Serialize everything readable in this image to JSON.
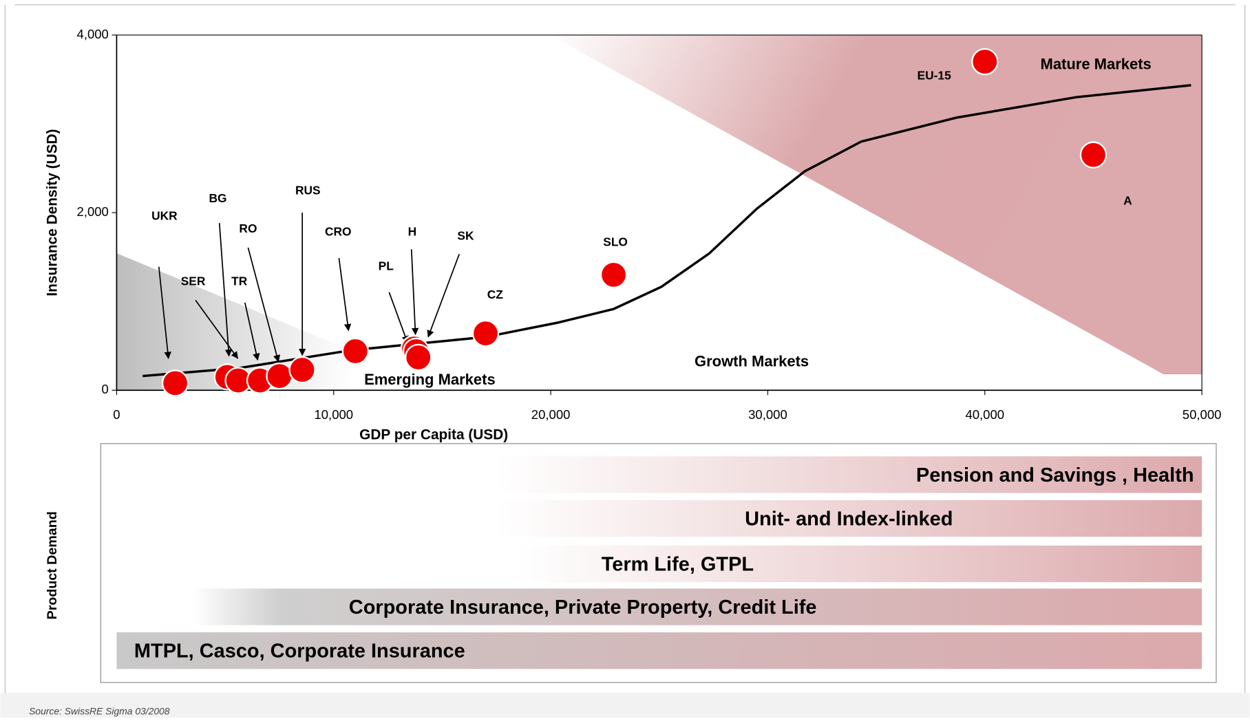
{
  "chart_data": {
    "type": "scatter",
    "xlabel": "GDP per Capita (USD)",
    "ylabel": "Insurance Density (USD)",
    "xlim": [
      0,
      50000
    ],
    "ylim": [
      0,
      4000
    ],
    "xticks": [
      0,
      {
        "value": 10000,
        "label": "10,000"
      },
      {
        "value": 20000,
        "label": "20,000"
      },
      {
        "value": 30000,
        "label": "30,000"
      },
      {
        "value": 40000,
        "label": "40,000"
      },
      {
        "value": 50000,
        "label": "50,000"
      }
    ],
    "yticks": [
      0,
      {
        "value": 2000,
        "label": "2,000"
      },
      {
        "value": 4000,
        "label": "4,000"
      }
    ],
    "color": "#ee0000",
    "labels": [
      "UKR",
      "BG",
      "SER",
      "TR",
      "RO",
      "RUS",
      "CRO",
      "PL",
      "H",
      "SK",
      "CZ",
      "SLO",
      "EU-15",
      "A"
    ],
    "x": [
      2700,
      5100,
      5600,
      6600,
      7500,
      8550,
      11000,
      13700,
      13800,
      13900,
      17000,
      22900,
      40000,
      45000
    ],
    "y": [
      80,
      150,
      110,
      110,
      160,
      230,
      440,
      470,
      440,
      370,
      640,
      1300,
      3700,
      2650
    ],
    "trend": {
      "x": [
        1200,
        5650,
        10800,
        17000,
        20300,
        22900,
        25100,
        27300,
        29500,
        31700,
        34300,
        38700,
        44200,
        49500
      ],
      "y": [
        160,
        250,
        450,
        600,
        760,
        915,
        1165,
        1540,
        2045,
        2465,
        2800,
        3070,
        3300,
        3435
      ]
    },
    "annotations": [
      "Mature Markets",
      "Growth Markets",
      "Emerging Markets"
    ],
    "source": "Source: SwissRE Sigma 03/2008",
    "product_demand": {
      "label": "Product Demand",
      "bars": [
        "Pension and Savings , Health",
        "Unit- and Index-linked",
        "Term Life, GTPL",
        "Corporate Insurance, Private Property, Credit Life",
        "MTPL, Casco, Corporate Insurance"
      ]
    }
  }
}
